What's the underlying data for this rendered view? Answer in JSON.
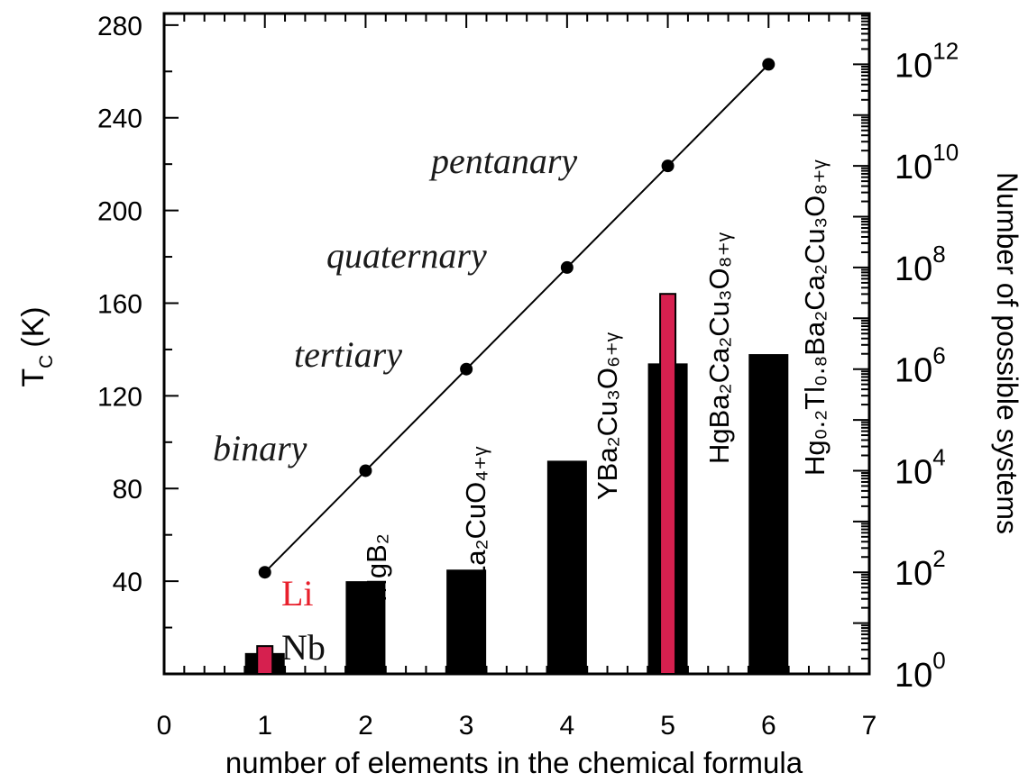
{
  "chart_data": {
    "type": "bar",
    "xlabel": "number of elements in the chemical formula",
    "ylabel": "T",
    "ylabel_sub": "C",
    "ylabel_unit": "(K)",
    "y2label": "Number of possible systems",
    "xlim": [
      0,
      7
    ],
    "ylim": [
      0,
      285
    ],
    "x_ticks": [
      0,
      1,
      2,
      3,
      4,
      5,
      6,
      7
    ],
    "y_ticks": [
      40,
      80,
      120,
      160,
      200,
      240,
      280
    ],
    "y2_scale": "log",
    "y2_lim": [
      1,
      10000000000000
    ],
    "y2_tick_labels": [
      {
        "base": "10",
        "exp": "0",
        "value": 1
      },
      {
        "base": "10",
        "exp": "2",
        "value": 100
      },
      {
        "base": "10",
        "exp": "4",
        "value": 10000
      },
      {
        "base": "10",
        "exp": "6",
        "value": 1000000
      },
      {
        "base": "10",
        "exp": "8",
        "value": 100000000
      },
      {
        "base": "10",
        "exp": "10",
        "value": 10000000000
      },
      {
        "base": "10",
        "exp": "12",
        "value": 1000000000000
      }
    ],
    "colors": {
      "black_bar": "#000000",
      "red_bar": "#d6204f",
      "mgb2": "#2f6fe8",
      "li": "#e8202c"
    },
    "bars": [
      {
        "x": 1,
        "value": 9,
        "color": "black"
      },
      {
        "x": 1,
        "value": 12,
        "color": "red"
      },
      {
        "x": 2,
        "value": 40,
        "color": "black"
      },
      {
        "x": 3,
        "value": 45,
        "color": "black"
      },
      {
        "x": 4,
        "value": 92,
        "color": "black"
      },
      {
        "x": 5,
        "value": 134,
        "color": "black"
      },
      {
        "x": 5,
        "value": 164,
        "color": "red"
      },
      {
        "x": 6,
        "value": 138,
        "color": "black"
      }
    ],
    "bar_labels": [
      {
        "text": "Nb",
        "x": 1
      },
      {
        "text": "Li",
        "x": 1
      },
      {
        "text": "MgB₂",
        "x": 2
      },
      {
        "text": "La₂CuO₄₊ᵧ",
        "x": 3
      },
      {
        "text": "YBa₂Cu₃O₆₊ᵧ",
        "x": 4
      },
      {
        "text": "HgBa₂Ca₂Cu₃O₈₊ᵧ",
        "x": 5
      },
      {
        "text": "Hg₀.₂Tl₀.₈Ba₂Ca₂Cu₃O₈₊ᵧ",
        "x": 6
      }
    ],
    "series": [
      {
        "x": [
          1,
          2,
          3,
          4,
          5,
          6
        ],
        "values": [
          100,
          10000,
          1000000,
          100000000,
          10000000000,
          1000000000000
        ]
      }
    ],
    "annotations": [
      "binary",
      "tertiary",
      "quaternary",
      "pentanary"
    ]
  }
}
